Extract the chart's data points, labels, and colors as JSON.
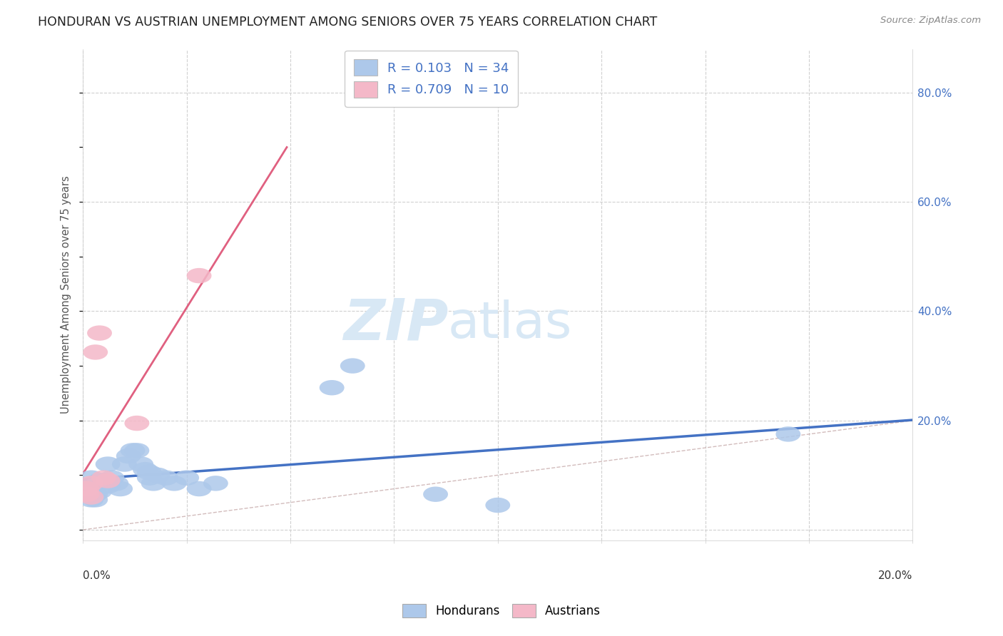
{
  "title": "HONDURAN VS AUSTRIAN UNEMPLOYMENT AMONG SENIORS OVER 75 YEARS CORRELATION CHART",
  "source": "Source: ZipAtlas.com",
  "ylabel": "Unemployment Among Seniors over 75 years",
  "ytick_labels": [
    "",
    "20.0%",
    "40.0%",
    "60.0%",
    "80.0%"
  ],
  "ytick_values": [
    0.0,
    0.2,
    0.4,
    0.6,
    0.8
  ],
  "xlim": [
    0,
    0.2
  ],
  "ylim": [
    -0.02,
    0.88
  ],
  "honduran_R": 0.103,
  "honduran_N": 34,
  "austrian_R": 0.709,
  "austrian_N": 10,
  "honduran_color": "#adc8ea",
  "honduran_line_color": "#4472c4",
  "austrian_color": "#f4b8c8",
  "austrian_line_color": "#e06080",
  "background_color": "#ffffff",
  "grid_color": "#d0d0d0",
  "watermark_zip": "ZIP",
  "watermark_atlas": "atlas",
  "watermark_color": "#d8e8f5",
  "honduran_x": [
    0.001,
    0.002,
    0.002,
    0.003,
    0.003,
    0.003,
    0.004,
    0.004,
    0.005,
    0.006,
    0.006,
    0.007,
    0.008,
    0.009,
    0.01,
    0.011,
    0.012,
    0.013,
    0.014,
    0.015,
    0.016,
    0.016,
    0.017,
    0.018,
    0.02,
    0.022,
    0.025,
    0.028,
    0.032,
    0.06,
    0.065,
    0.085,
    0.1,
    0.17
  ],
  "honduran_y": [
    0.075,
    0.095,
    0.055,
    0.08,
    0.065,
    0.055,
    0.09,
    0.07,
    0.09,
    0.12,
    0.08,
    0.095,
    0.085,
    0.075,
    0.12,
    0.135,
    0.145,
    0.145,
    0.12,
    0.11,
    0.105,
    0.095,
    0.085,
    0.1,
    0.095,
    0.085,
    0.095,
    0.075,
    0.085,
    0.26,
    0.3,
    0.065,
    0.045,
    0.175
  ],
  "austrian_x": [
    0.001,
    0.001,
    0.002,
    0.002,
    0.003,
    0.004,
    0.005,
    0.006,
    0.013,
    0.028
  ],
  "austrian_y": [
    0.075,
    0.065,
    0.085,
    0.06,
    0.325,
    0.36,
    0.095,
    0.09,
    0.195,
    0.465
  ],
  "ref_line_x": [
    0.0,
    0.2
  ],
  "ref_line_y": [
    0.0,
    0.2
  ]
}
